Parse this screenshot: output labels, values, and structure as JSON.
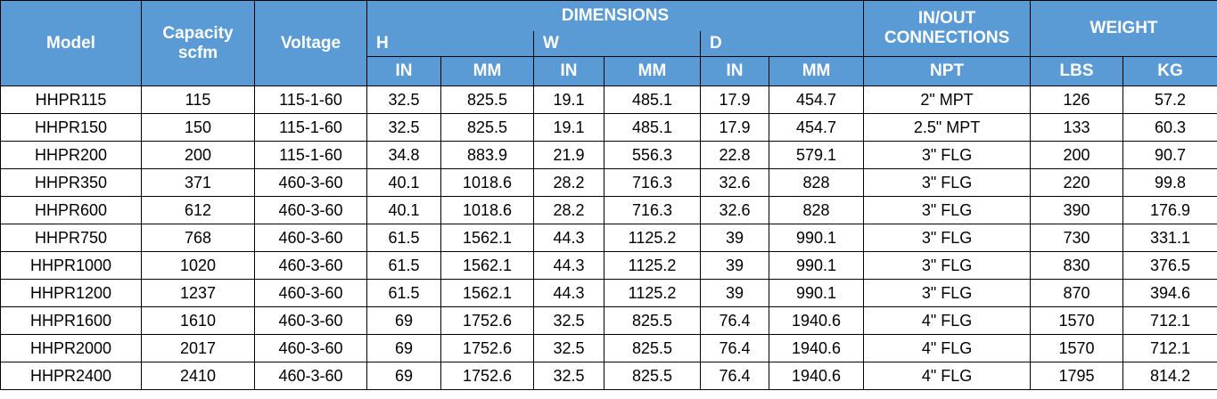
{
  "table": {
    "header": {
      "model": "Model",
      "capacity": [
        "Capacity",
        "scfm"
      ],
      "voltage": "Voltage",
      "dimensions": "DIMENSIONS",
      "groups": [
        "H",
        "W",
        "D"
      ],
      "units": [
        "IN",
        "MM",
        "IN",
        "MM",
        "IN",
        "MM"
      ],
      "connections": [
        "IN/OUT",
        "CONNECTIONS"
      ],
      "connections_unit": "NPT",
      "weight": "WEIGHT",
      "weight_units": [
        "LBS",
        "KG"
      ]
    },
    "rows": [
      [
        "HHPR115",
        "115",
        "115-1-60",
        "32.5",
        "825.5",
        "19.1",
        "485.1",
        "17.9",
        "454.7",
        "2\" MPT",
        "126",
        "57.2"
      ],
      [
        "HHPR150",
        "150",
        "115-1-60",
        "32.5",
        "825.5",
        "19.1",
        "485.1",
        "17.9",
        "454.7",
        "2.5\" MPT",
        "133",
        "60.3"
      ],
      [
        "HHPR200",
        "200",
        "115-1-60",
        "34.8",
        "883.9",
        "21.9",
        "556.3",
        "22.8",
        "579.1",
        "3\" FLG",
        "200",
        "90.7"
      ],
      [
        "HHPR350",
        "371",
        "460-3-60",
        "40.1",
        "1018.6",
        "28.2",
        "716.3",
        "32.6",
        "828",
        "3\" FLG",
        "220",
        "99.8"
      ],
      [
        "HHPR600",
        "612",
        "460-3-60",
        "40.1",
        "1018.6",
        "28.2",
        "716.3",
        "32.6",
        "828",
        "3\" FLG",
        "390",
        "176.9"
      ],
      [
        "HHPR750",
        "768",
        "460-3-60",
        "61.5",
        "1562.1",
        "44.3",
        "1125.2",
        "39",
        "990.1",
        "3\" FLG",
        "730",
        "331.1"
      ],
      [
        "HHPR1000",
        "1020",
        "460-3-60",
        "61.5",
        "1562.1",
        "44.3",
        "1125.2",
        "39",
        "990.1",
        "3\" FLG",
        "830",
        "376.5"
      ],
      [
        "HHPR1200",
        "1237",
        "460-3-60",
        "61.5",
        "1562.1",
        "44.3",
        "1125.2",
        "39",
        "990.1",
        "3\" FLG",
        "870",
        "394.6"
      ],
      [
        "HHPR1600",
        "1610",
        "460-3-60",
        "69",
        "1752.6",
        "32.5",
        "825.5",
        "76.4",
        "1940.6",
        "4\" FLG",
        "1570",
        "712.1"
      ],
      [
        "HHPR2000",
        "2017",
        "460-3-60",
        "69",
        "1752.6",
        "32.5",
        "825.5",
        "76.4",
        "1940.6",
        "4\" FLG",
        "1570",
        "712.1"
      ],
      [
        "HHPR2400",
        "2410",
        "460-3-60",
        "69",
        "1752.6",
        "32.5",
        "825.5",
        "76.4",
        "1940.6",
        "4\" FLG",
        "1795",
        "814.2"
      ]
    ]
  }
}
